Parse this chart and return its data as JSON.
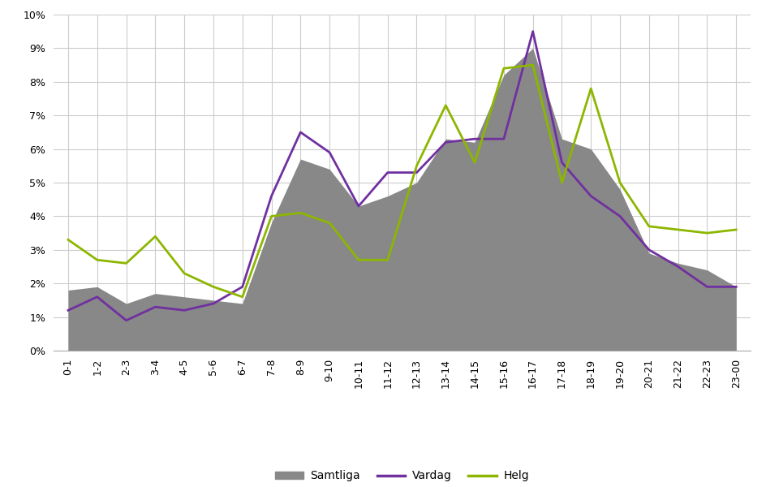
{
  "categories": [
    "0-1",
    "1-2",
    "2-3",
    "3-4",
    "4-5",
    "5-6",
    "6-7",
    "7-8",
    "8-9",
    "9-10",
    "10-11",
    "11-12",
    "12-13",
    "13-14",
    "14-15",
    "15-16",
    "16-17",
    "17-18",
    "18-19",
    "19-20",
    "20-21",
    "21-22",
    "22-23",
    "23-00"
  ],
  "samtliga": [
    0.018,
    0.019,
    0.014,
    0.017,
    0.016,
    0.015,
    0.014,
    0.038,
    0.057,
    0.054,
    0.043,
    0.046,
    0.05,
    0.063,
    0.062,
    0.082,
    0.09,
    0.063,
    0.06,
    0.048,
    0.029,
    0.026,
    0.024,
    0.019
  ],
  "vardag": [
    0.012,
    0.016,
    0.009,
    0.013,
    0.012,
    0.014,
    0.019,
    0.046,
    0.065,
    0.059,
    0.043,
    0.053,
    0.053,
    0.062,
    0.063,
    0.063,
    0.095,
    0.056,
    0.046,
    0.04,
    0.03,
    0.025,
    0.019,
    0.019
  ],
  "helg": [
    0.033,
    0.027,
    0.026,
    0.034,
    0.023,
    0.019,
    0.016,
    0.04,
    0.041,
    0.038,
    0.027,
    0.027,
    0.055,
    0.073,
    0.056,
    0.084,
    0.085,
    0.05,
    0.078,
    0.05,
    0.037,
    0.036,
    0.035,
    0.036
  ],
  "samtliga_color": "#888888",
  "vardag_color": "#7030A0",
  "helg_color": "#8DB600",
  "background_color": "#ffffff",
  "grid_color": "#cccccc",
  "ylim": [
    0,
    0.1
  ],
  "yticks": [
    0,
    0.01,
    0.02,
    0.03,
    0.04,
    0.05,
    0.06,
    0.07,
    0.08,
    0.09,
    0.1
  ],
  "legend_labels": [
    "Samtliga",
    "Vardag",
    "Helg"
  ]
}
